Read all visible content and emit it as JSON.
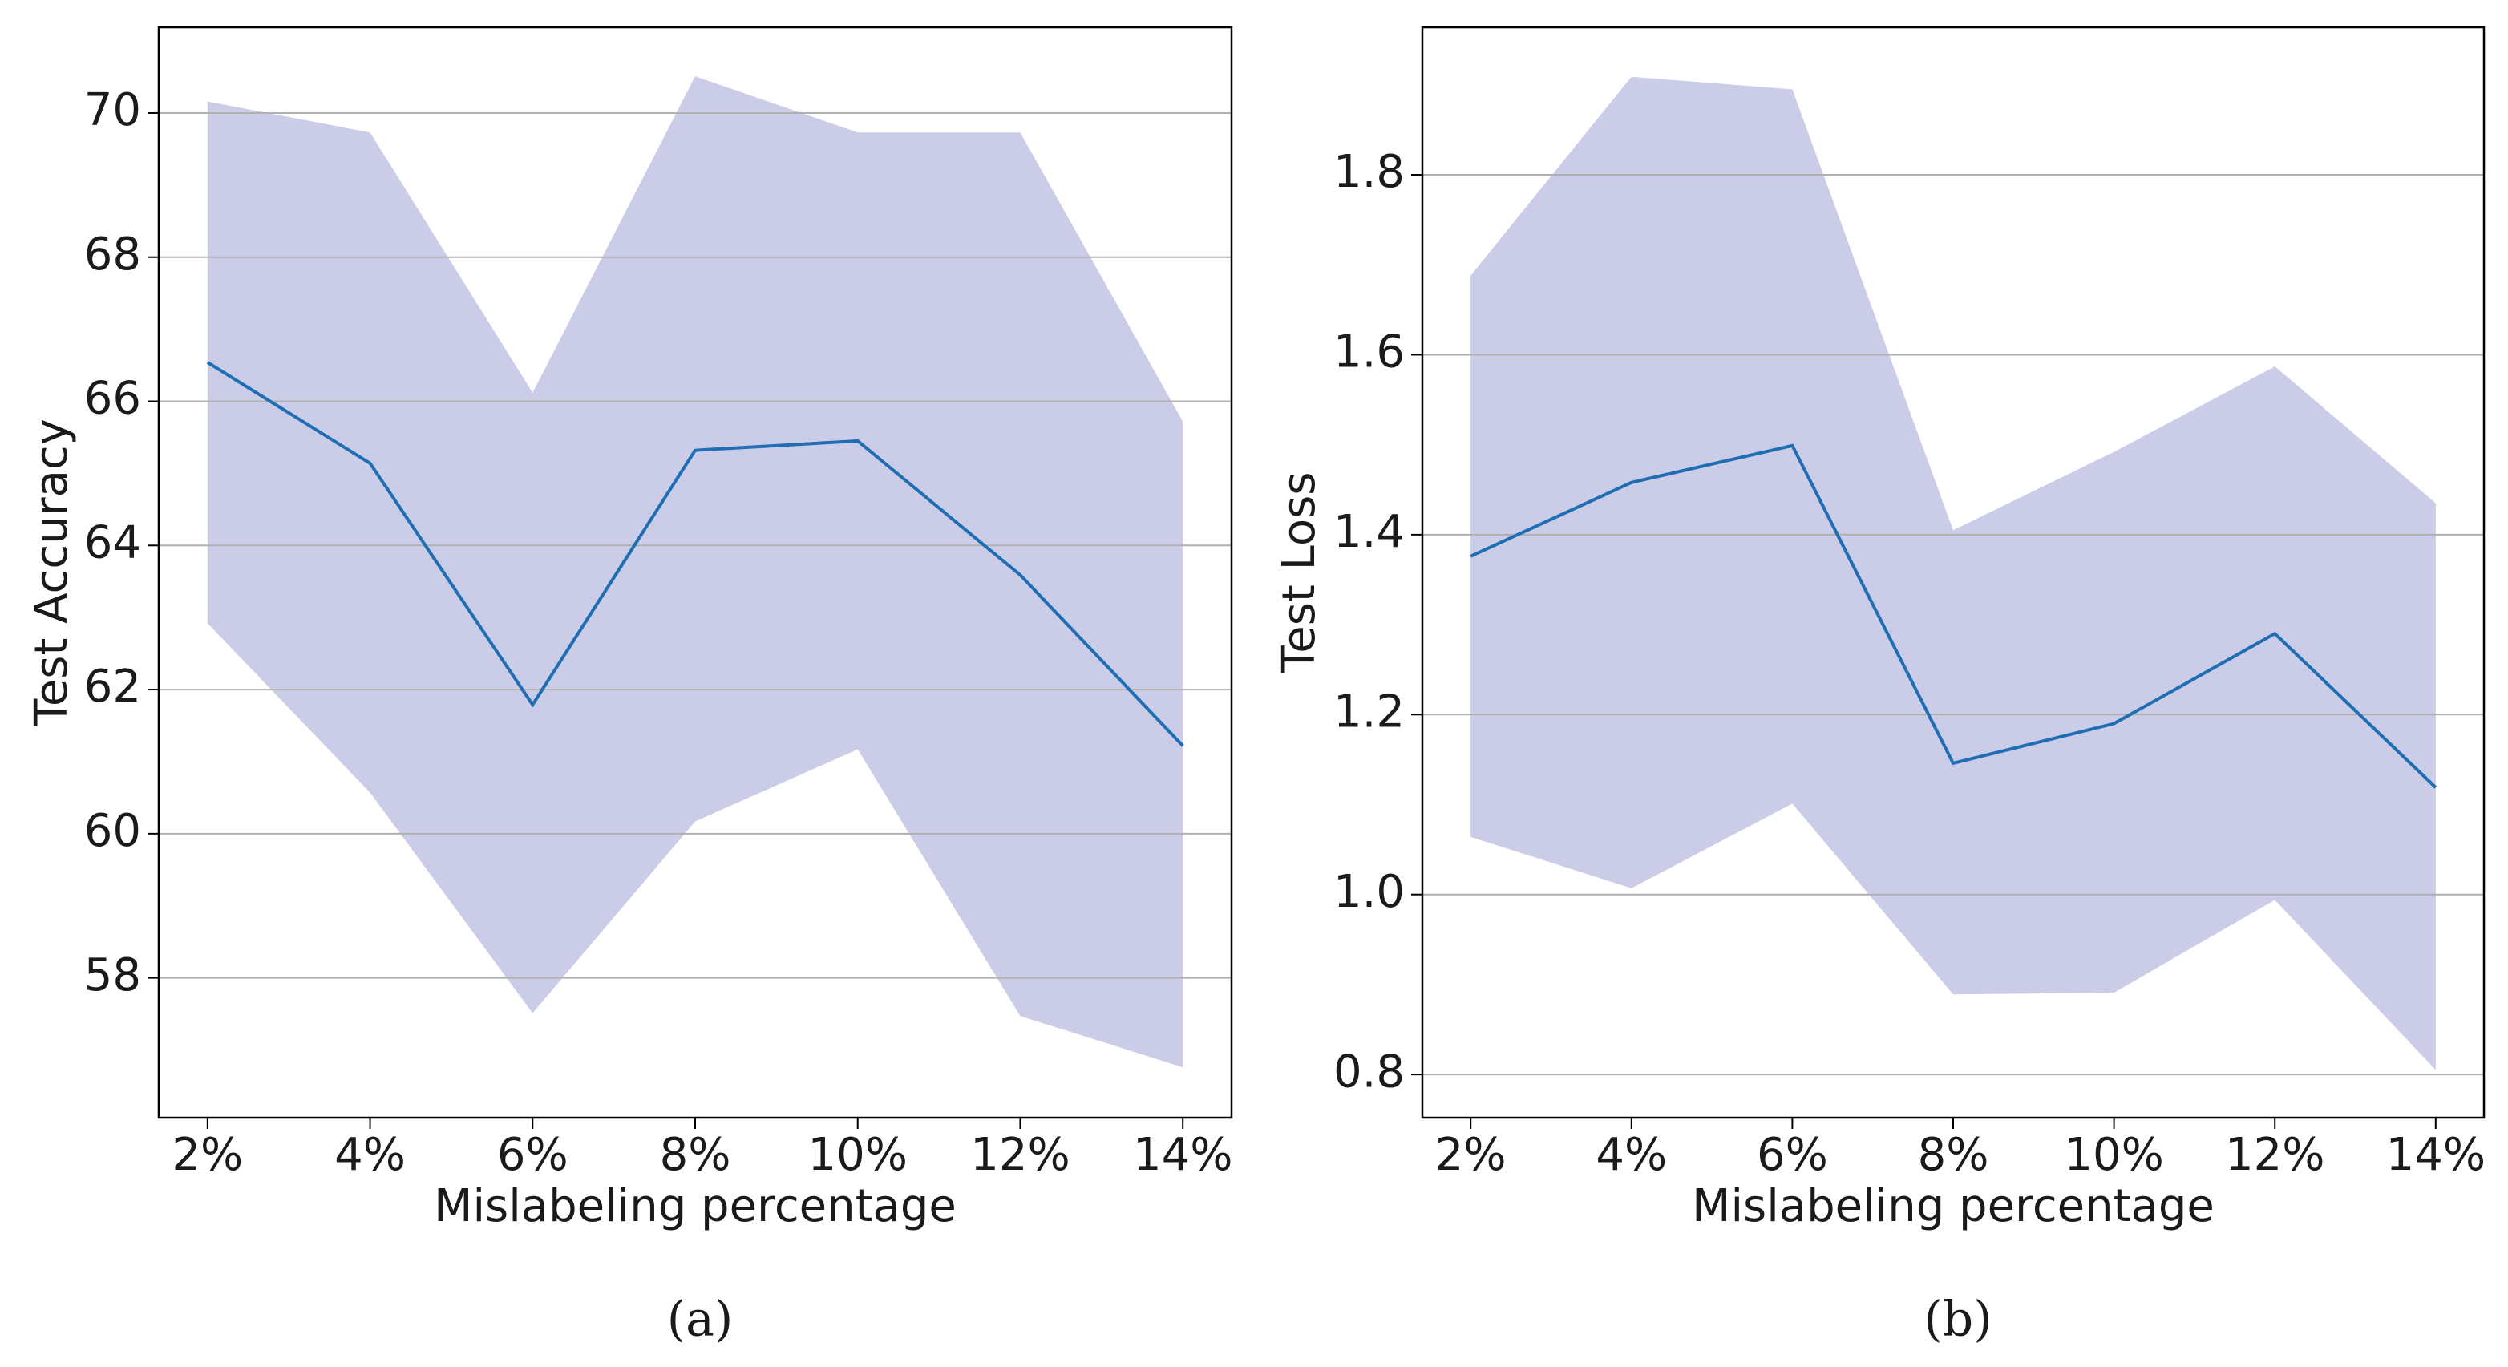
{
  "chart_data": [
    {
      "type": "line",
      "caption": "(a)",
      "xlabel": "Mislabeling percentage",
      "ylabel": "Test Accuracy",
      "categories": [
        "2%",
        "4%",
        "6%",
        "8%",
        "10%",
        "12%",
        "14%"
      ],
      "values": [
        66.54,
        65.14,
        61.79,
        65.32,
        65.45,
        63.59,
        61.22
      ],
      "upper": [
        70.16,
        69.73,
        66.12,
        70.51,
        69.73,
        69.73,
        65.72
      ],
      "lower": [
        62.92,
        60.57,
        57.51,
        60.17,
        61.17,
        57.47,
        56.76
      ],
      "color": "#1f6eb4",
      "band_color": "#cbcde8",
      "ylim": [
        56.06,
        71.19
      ],
      "yticks": [
        58,
        60,
        62,
        64,
        66,
        68,
        70
      ],
      "grid": true
    },
    {
      "type": "line",
      "caption": "(b)",
      "xlabel": "Mislabeling percentage",
      "ylabel": "Test Loss",
      "categories": [
        "2%",
        "4%",
        "6%",
        "8%",
        "10%",
        "12%",
        "14%"
      ],
      "values": [
        1.376,
        1.458,
        1.499,
        1.146,
        1.19,
        1.29,
        1.119
      ],
      "upper": [
        1.688,
        1.909,
        1.895,
        1.405,
        1.492,
        1.587,
        1.435
      ],
      "lower": [
        1.064,
        1.007,
        1.101,
        0.889,
        0.891,
        0.994,
        0.805
      ],
      "color": "#1f6eb4",
      "band_color": "#cbcde8",
      "ylim": [
        0.752,
        1.964
      ],
      "yticks": [
        0.8,
        {
          "value": 1,
          "label": "1.0"
        },
        1.2,
        1.4,
        1.6,
        1.8
      ],
      "grid": true
    }
  ]
}
